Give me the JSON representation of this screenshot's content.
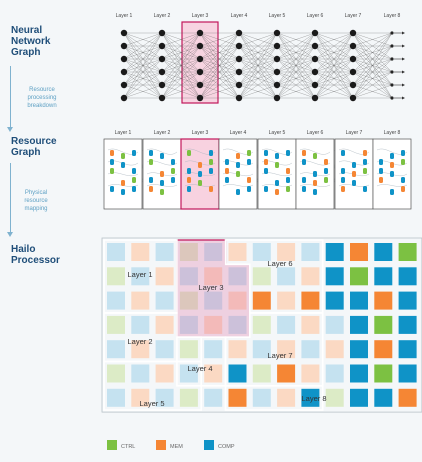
{
  "sections": {
    "nn": [
      "Neural",
      "Network",
      "Graph"
    ],
    "rg": [
      "Resource",
      "Graph"
    ],
    "hp": [
      "Hailo",
      "Processor"
    ]
  },
  "steps": {
    "breakdown": [
      "Resource",
      "processing",
      "breakdown"
    ],
    "mapping": [
      "Physical",
      "resource",
      "mapping"
    ]
  },
  "layers": [
    "Layer 1",
    "Layer 2",
    "Layer 3",
    "Layer 4",
    "Layer 5",
    "Layer 6",
    "Layer 7",
    "Layer 8"
  ],
  "chip_layers": [
    "Layer 1",
    "Layer 2",
    "Layer 3",
    "Layer 4",
    "Layer 5",
    "Layer 6",
    "Layer 7",
    "Layer 8"
  ],
  "legend": [
    {
      "label": "CTRL",
      "color": "#7cc142"
    },
    {
      "label": "MEM",
      "color": "#f58634"
    },
    {
      "label": "COMP",
      "color": "#0f93c7"
    }
  ],
  "colors": {
    "highlight": "#c2185b",
    "ctrl": "#7cc142",
    "mem": "#f58634",
    "comp": "#0f93c7",
    "ctrl_light": "#dcebc6",
    "mem_light": "#fbd9c3",
    "comp_light": "#c5e2f0"
  }
}
